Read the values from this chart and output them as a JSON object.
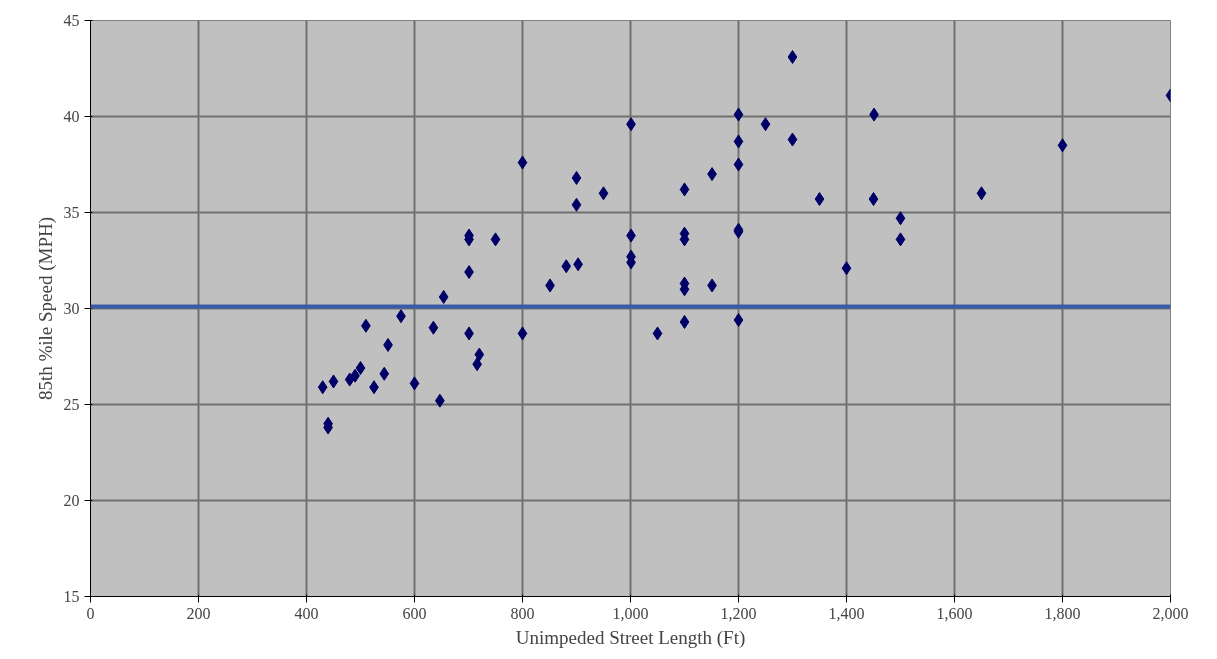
{
  "chart_data": {
    "type": "scatter",
    "xlabel": "Unimpeded Street Length (Ft)",
    "ylabel": "85th %ile Speed (MPH)",
    "xlim": [
      0,
      2000
    ],
    "ylim": [
      15,
      45
    ],
    "xticks": [
      0,
      200,
      400,
      600,
      800,
      {
        "value": 1000,
        "label": "1,000"
      },
      {
        "value": 1200,
        "label": "1,200"
      },
      {
        "value": 1400,
        "label": "1,400"
      },
      {
        "value": 1600,
        "label": "1,600"
      },
      {
        "value": 1800,
        "label": "1,800"
      },
      {
        "value": 2000,
        "label": "2,000"
      }
    ],
    "yticks": [
      15,
      20,
      25,
      30,
      35,
      40,
      45
    ],
    "grid": true,
    "marker": "diamond",
    "series": [
      {
        "color": "#000066",
        "x": [
          430,
          450,
          440,
          440,
          480,
          490,
          500,
          510,
          525,
          544,
          551,
          575,
          600,
          635,
          647,
          654,
          701,
          701,
          701,
          701,
          716,
          720,
          750,
          800,
          800,
          851,
          881,
          903,
          900,
          900,
          950,
          1001,
          1001,
          1001,
          1001,
          1050,
          1100,
          1100,
          1100,
          1100,
          1100,
          1100,
          1151,
          1151,
          1200,
          1200,
          1200,
          1200,
          1200,
          1200,
          1250,
          1300,
          1300,
          1350,
          1400,
          1451,
          1450,
          1500,
          1500,
          1650,
          1800,
          2000
        ],
        "values": [
          25.9,
          26.2,
          24.0,
          23.8,
          26.3,
          26.5,
          26.9,
          29.1,
          25.9,
          26.6,
          28.1,
          29.6,
          26.1,
          29.0,
          25.2,
          30.6,
          28.7,
          31.9,
          33.6,
          33.8,
          27.1,
          27.6,
          33.6,
          28.7,
          37.6,
          31.2,
          32.2,
          32.3,
          35.4,
          36.8,
          36.0,
          32.4,
          32.7,
          33.8,
          39.6,
          28.7,
          29.3,
          31.0,
          31.3,
          33.6,
          33.9,
          36.2,
          31.2,
          37.0,
          29.4,
          34.1,
          37.5,
          38.7,
          40.1,
          34.0,
          39.6,
          38.8,
          43.1,
          35.7,
          32.1,
          40.1,
          35.7,
          34.7,
          33.6,
          36.0,
          38.5,
          41.1
        ]
      }
    ],
    "ref_lines": [
      {
        "axis": "y",
        "value": 30.1,
        "color": "#3a5ba8"
      }
    ]
  }
}
